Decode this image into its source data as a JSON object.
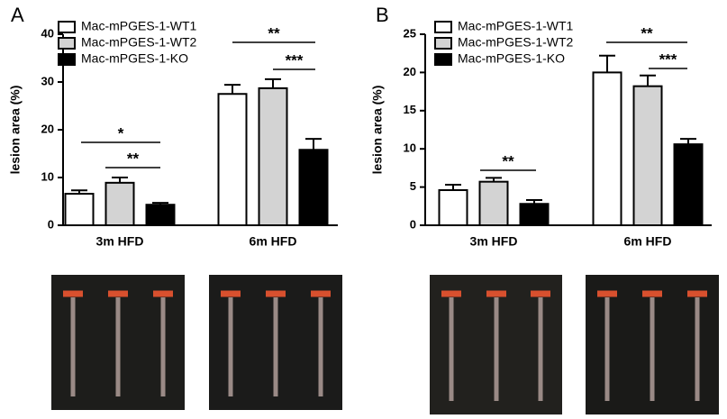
{
  "chart_data": [
    {
      "type": "bar",
      "panel": "A",
      "y_label": "lesion area (%)",
      "categories": [
        "3m HFD",
        "6m HFD"
      ],
      "series": [
        {
          "name": "Mac-mPGES-1-WT1",
          "color": "#ffffff",
          "values": [
            6.6,
            27.5
          ],
          "errors": [
            0.7,
            1.9
          ]
        },
        {
          "name": "Mac-mPGES-1-WT2",
          "color": "#d3d3d3",
          "values": [
            8.9,
            28.7
          ],
          "errors": [
            1.1,
            1.9
          ]
        },
        {
          "name": "Mac-mPGES-1-KO",
          "color": "#000000",
          "values": [
            4.3,
            15.8
          ],
          "errors": [
            0.4,
            2.3
          ]
        }
      ],
      "ylim": [
        0,
        40
      ],
      "yticks": [
        0,
        10,
        20,
        30,
        40
      ],
      "annotations": [
        {
          "text": "*"
        },
        {
          "text": "**"
        },
        {
          "text": "**"
        },
        {
          "text": "***"
        }
      ]
    },
    {
      "type": "bar",
      "panel": "B",
      "y_label": "lesion area (%)",
      "categories": [
        "3m HFD",
        "6m HFD"
      ],
      "series": [
        {
          "name": "Mac-mPGES-1-WT1",
          "color": "#ffffff",
          "values": [
            4.6,
            20.0
          ],
          "errors": [
            0.7,
            2.2
          ]
        },
        {
          "name": "Mac-mPGES-1-WT2",
          "color": "#d3d3d3",
          "values": [
            5.7,
            18.2
          ],
          "errors": [
            0.5,
            1.4
          ]
        },
        {
          "name": "Mac-mPGES-1-KO",
          "color": "#000000",
          "values": [
            2.8,
            10.6
          ],
          "errors": [
            0.5,
            0.7
          ]
        }
      ],
      "ylim": [
        0,
        25
      ],
      "yticks": [
        0,
        5,
        10,
        15,
        20,
        25
      ],
      "annotations": [
        {
          "text": "**"
        },
        {
          "text": "**"
        },
        {
          "text": "***"
        }
      ]
    }
  ]
}
